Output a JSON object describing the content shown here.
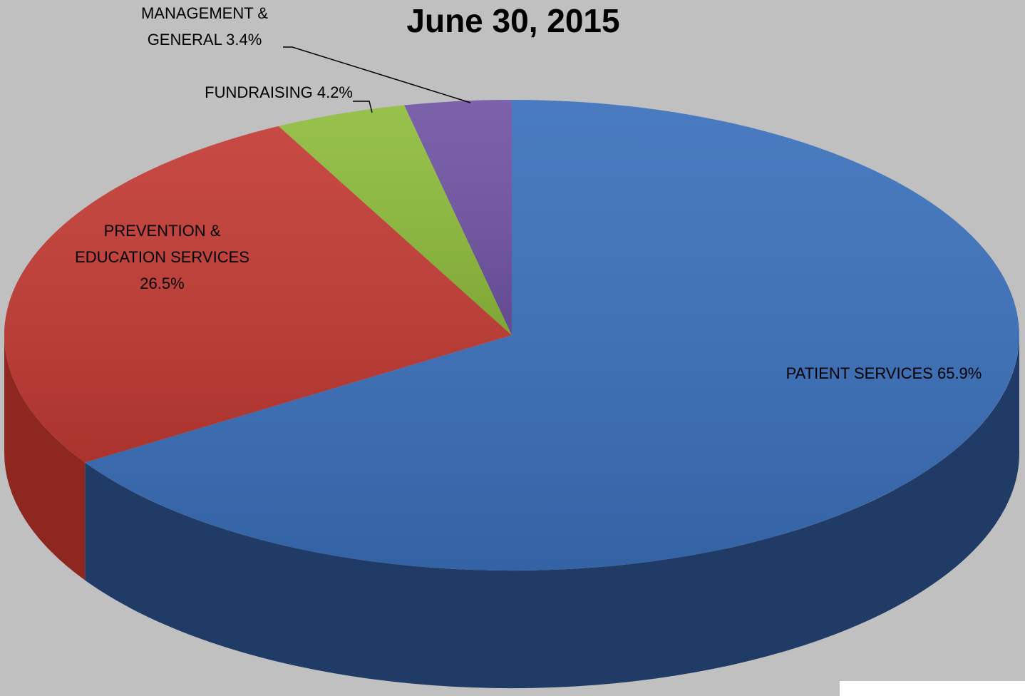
{
  "chart_data": {
    "type": "pie3d",
    "title": "June 30, 2015",
    "categories": [
      "PATIENT SERVICES",
      "PREVENTION & EDUCATION SERVICES",
      "FUNDRAISING",
      "MANAGEMENT & GENERAL"
    ],
    "values": [
      65.9,
      26.5,
      4.2,
      3.4
    ],
    "value_labels": [
      "65.9%",
      "26.5%",
      "4.2%",
      "3.4%"
    ],
    "colors": [
      "#3a70bb",
      "#c23a33",
      "#8ebc3c",
      "#7054a3"
    ],
    "side_colors": [
      "#1f3b66",
      "#8e2720",
      "#5e7e25",
      "#4a3670"
    ]
  }
}
